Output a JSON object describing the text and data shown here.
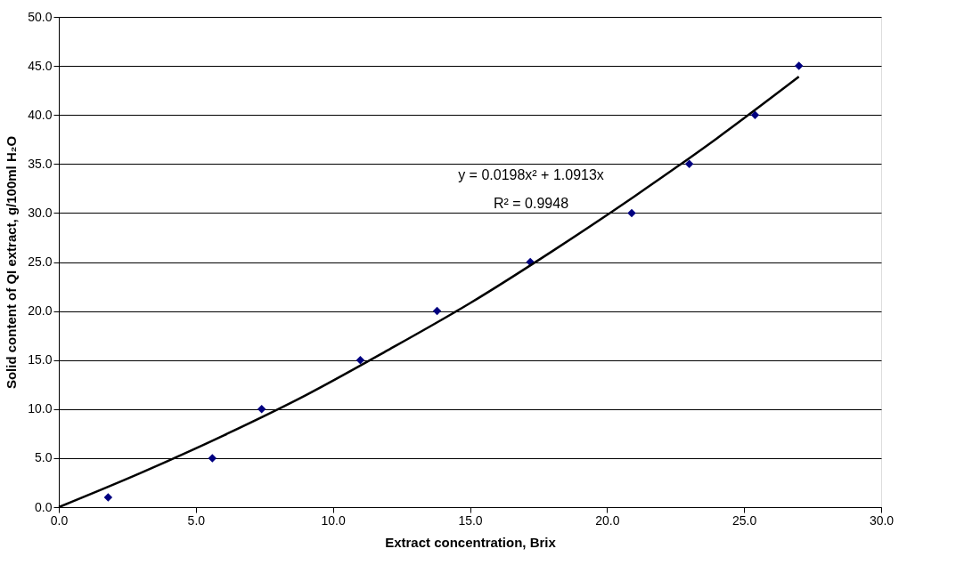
{
  "chart_data": {
    "type": "scatter",
    "xlabel": "Extract concentration, Brix",
    "ylabel": "Solid content of QI extract, g/100ml H₂O",
    "xlim": [
      0,
      30
    ],
    "xticks": [
      {
        "value": 0,
        "label": "0.0"
      },
      {
        "value": 5,
        "label": "5.0"
      },
      {
        "value": 10,
        "label": "10.0"
      },
      {
        "value": 15,
        "label": "15.0"
      },
      {
        "value": 20,
        "label": "20.0"
      },
      {
        "value": 25,
        "label": "25.0"
      },
      {
        "value": 30,
        "label": "30.0"
      }
    ],
    "ylim": [
      0,
      50
    ],
    "yticks": [
      {
        "value": 0,
        "label": "0.0"
      },
      {
        "value": 5,
        "label": "5.0"
      },
      {
        "value": 10,
        "label": "10.0"
      },
      {
        "value": 15,
        "label": "15.0"
      },
      {
        "value": 20,
        "label": "20.0"
      },
      {
        "value": 25,
        "label": "25.0"
      },
      {
        "value": 30,
        "label": "30.0"
      },
      {
        "value": 35,
        "label": "35.0"
      },
      {
        "value": 40,
        "label": "40.0"
      },
      {
        "value": 45,
        "label": "45.0"
      },
      {
        "value": 50,
        "label": "50.0"
      }
    ],
    "grid": "y",
    "marker": "diamond",
    "series": [
      {
        "color": "#000080",
        "x": [
          1.8,
          5.6,
          7.4,
          11.0,
          13.8,
          17.2,
          20.9,
          23.0,
          25.4,
          27.0
        ],
        "values": [
          1,
          5,
          10,
          15,
          20,
          25,
          30,
          35,
          40,
          45
        ]
      },
      {
        "type": "line",
        "color": "#000000",
        "marker": "none",
        "line_style": "solid",
        "x": [
          0,
          3,
          6,
          9,
          12,
          15,
          18,
          21,
          24,
          27
        ],
        "values": [
          0,
          3.5,
          7.3,
          11.4,
          16.0,
          20.8,
          26.1,
          31.7,
          37.6,
          43.9
        ]
      }
    ],
    "annotations": [
      "y = 0.0198x² + 1.0913x",
      "R² = 0.9948"
    ]
  }
}
